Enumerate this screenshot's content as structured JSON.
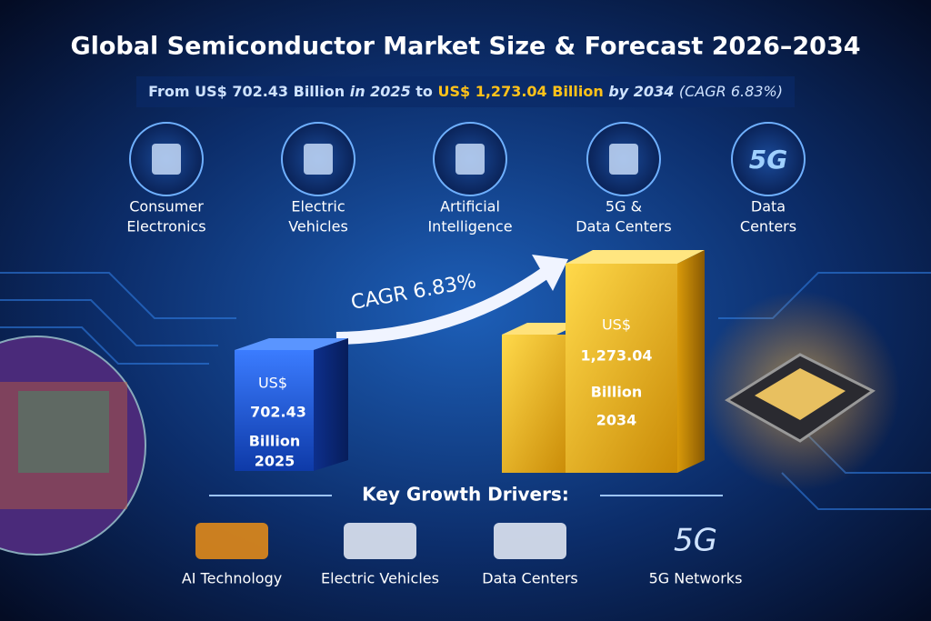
{
  "header": {
    "title": "Global Semiconductor Market Size & Forecast 2026–2034",
    "subtitle_parts": [
      "From US$ 702.43 Billion",
      "in 2025",
      "to",
      "US$ 1,273.04 Billion",
      "by 2034",
      "(CAGR 6.83%)"
    ]
  },
  "segments": [
    {
      "label_lines": [
        "Consumer",
        "Electronics"
      ]
    },
    {
      "label_lines": [
        "Electric",
        "Vehicles"
      ]
    },
    {
      "label_lines": [
        "Artificial",
        "Intelligence"
      ]
    },
    {
      "label_lines": [
        "5G &",
        "Data Centers"
      ]
    },
    {
      "icon_text": "5G",
      "label_lines": [
        "Data",
        "Centers"
      ]
    }
  ],
  "growth": {
    "label": "CAGR 6.83%",
    "bars": [
      {
        "currency": "US$",
        "amount": "702.43",
        "unit": "Billion",
        "year": "2025"
      },
      {
        "currency": "US$",
        "amount": "1,273.04",
        "unit": "Billion",
        "year": "2034"
      }
    ]
  },
  "drivers": {
    "title": "Key Growth Drivers:",
    "items": [
      {
        "label": "AI Technology"
      },
      {
        "label": "Electric Vehicles"
      },
      {
        "label": "Data Centers"
      },
      {
        "icon_text": "5G",
        "label": "5G Networks"
      }
    ]
  }
}
